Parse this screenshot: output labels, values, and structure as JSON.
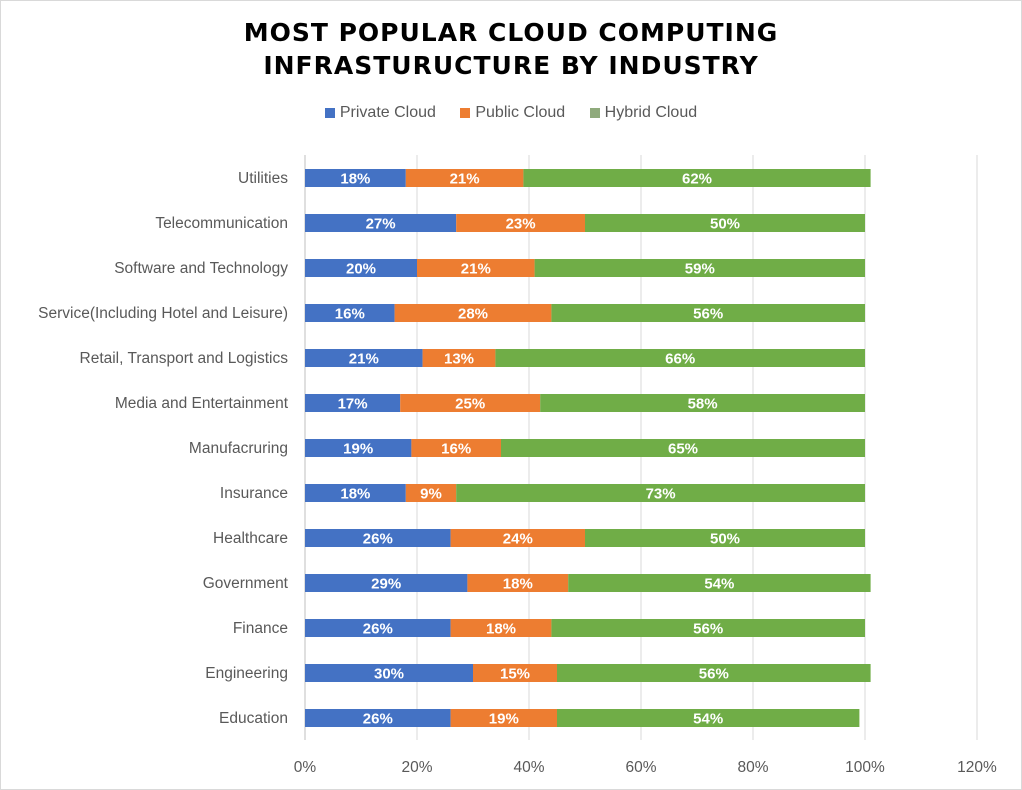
{
  "chart_data": {
    "type": "bar",
    "orientation": "horizontal",
    "stacked": true,
    "title": "MOST POPULAR CLOUD COMPUTING INFRASTURUCTURE BY INDUSTRY",
    "title_lines": [
      "MOST POPULAR CLOUD COMPUTING",
      "INFRASTURUCTURE BY INDUSTRY"
    ],
    "xlabel": "",
    "ylabel": "",
    "xlim": [
      0,
      120
    ],
    "x_ticks": [
      "0%",
      "20%",
      "40%",
      "60%",
      "80%",
      "100%",
      "120%"
    ],
    "grid": true,
    "legend_position": "top",
    "categories": [
      "Utilities",
      "Telecommunication",
      "Software and Technology",
      "Service(Including Hotel and Leisure)",
      "Retail, Transport and Logistics",
      "Media and Entertainment",
      "Manufacruring",
      "Insurance",
      "Healthcare",
      "Government",
      "Finance",
      "Engineering",
      "Education"
    ],
    "series": [
      {
        "name": "Private Cloud",
        "color": "#4472c4",
        "values": [
          18,
          27,
          20,
          16,
          21,
          17,
          19,
          18,
          26,
          29,
          26,
          30,
          26
        ]
      },
      {
        "name": "Public Cloud",
        "color": "#ed7d31",
        "values": [
          21,
          23,
          21,
          28,
          13,
          25,
          16,
          9,
          24,
          18,
          18,
          15,
          19
        ]
      },
      {
        "name": "Hybrid Cloud",
        "color": "#70ad47",
        "values": [
          62,
          50,
          59,
          56,
          66,
          58,
          65,
          73,
          50,
          54,
          56,
          56,
          54
        ]
      }
    ],
    "data_labels": true,
    "value_suffix": "%"
  }
}
